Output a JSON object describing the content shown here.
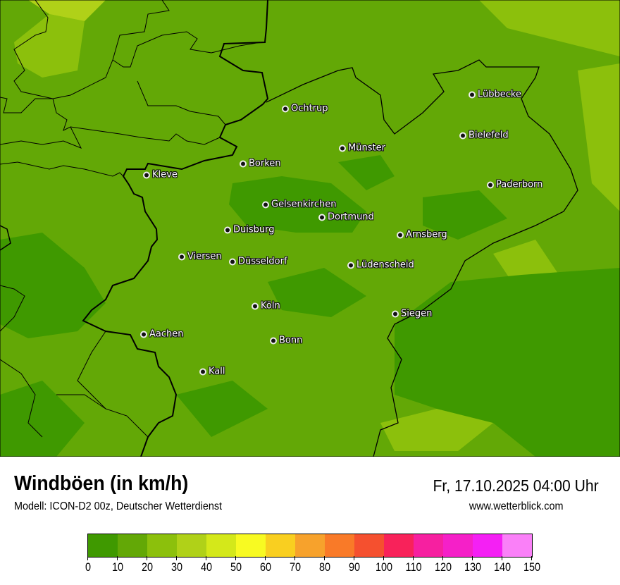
{
  "header": {
    "title": "Windböen (in km/h)",
    "subtitle": "Modell: ICON-D2 00z, Deutscher Wetterdienst",
    "datetime": "Fr, 17.10.2025 04:00 Uhr",
    "website": "www.wetterblick.com"
  },
  "legend": {
    "ticks": [
      "0",
      "10",
      "20",
      "30",
      "40",
      "50",
      "60",
      "70",
      "80",
      "90",
      "100",
      "110",
      "120",
      "130",
      "140",
      "150"
    ],
    "colors": [
      "#3f9900",
      "#63a806",
      "#8cc00c",
      "#b0d118",
      "#d4e81a",
      "#f8fa22",
      "#f9cf20",
      "#f7a22c",
      "#f97a28",
      "#f5502f",
      "#f8225a",
      "#f620a0",
      "#f520c8",
      "#f420f4",
      "#fa80f8"
    ]
  },
  "cities": [
    {
      "name": "Lübbecke"
    },
    {
      "name": "Ochtrup"
    },
    {
      "name": "Bielefeld"
    },
    {
      "name": "Münster"
    },
    {
      "name": "Borken"
    },
    {
      "name": "Kleve"
    },
    {
      "name": "Paderborn"
    },
    {
      "name": "Gelsenkirchen"
    },
    {
      "name": "Dortmund"
    },
    {
      "name": "Duisburg"
    },
    {
      "name": "Arnsberg"
    },
    {
      "name": "Viersen"
    },
    {
      "name": "Düsseldorf"
    },
    {
      "name": "Lüdenscheid"
    },
    {
      "name": "Köln"
    },
    {
      "name": "Siegen"
    },
    {
      "name": "Aachen"
    },
    {
      "name": "Bonn"
    },
    {
      "name": "Kall"
    }
  ]
}
